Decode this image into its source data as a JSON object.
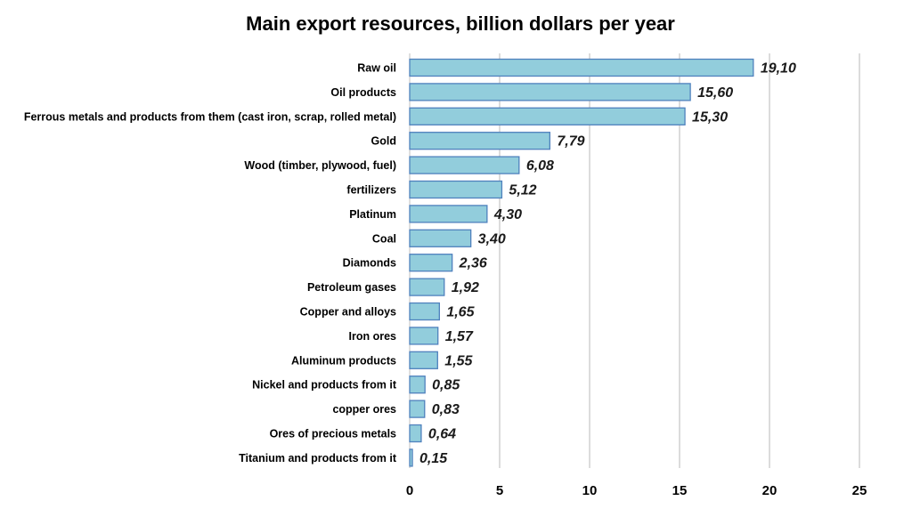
{
  "chart_data": {
    "type": "bar",
    "orientation": "horizontal",
    "title": "Main export resources, billion dollars per year",
    "xlabel": "",
    "ylabel": "",
    "xlim": [
      0,
      25
    ],
    "xticks": [
      "0",
      "5",
      "10",
      "15",
      "20",
      "25"
    ],
    "grid": "vertical",
    "bar_color": "#92CDDC",
    "bar_border_color": "#4F81BD",
    "categories": [
      "Raw oil",
      "Oil products",
      "Ferrous metals and products from them (cast iron, scrap, rolled metal)",
      "Gold",
      "Wood (timber, plywood, fuel)",
      "fertilizers",
      "Platinum",
      "Coal",
      "Diamonds",
      "Petroleum gases",
      "Copper and alloys",
      "Iron ores",
      "Aluminum products",
      "Nickel and products from it",
      "copper ores",
      "Ores of precious metals",
      "Titanium and products from it"
    ],
    "values": [
      19.1,
      15.6,
      15.3,
      7.79,
      6.08,
      5.12,
      4.3,
      3.4,
      2.36,
      1.92,
      1.65,
      1.57,
      1.55,
      0.85,
      0.83,
      0.64,
      0.15
    ],
    "value_labels": [
      "19,10",
      "15,60",
      "15,30",
      "7,79",
      "6,08",
      "5,12",
      "4,30",
      "3,40",
      "2,36",
      "1,92",
      "1,65",
      "1,57",
      "1,55",
      "0,85",
      "0,83",
      "0,64",
      "0,15"
    ]
  }
}
